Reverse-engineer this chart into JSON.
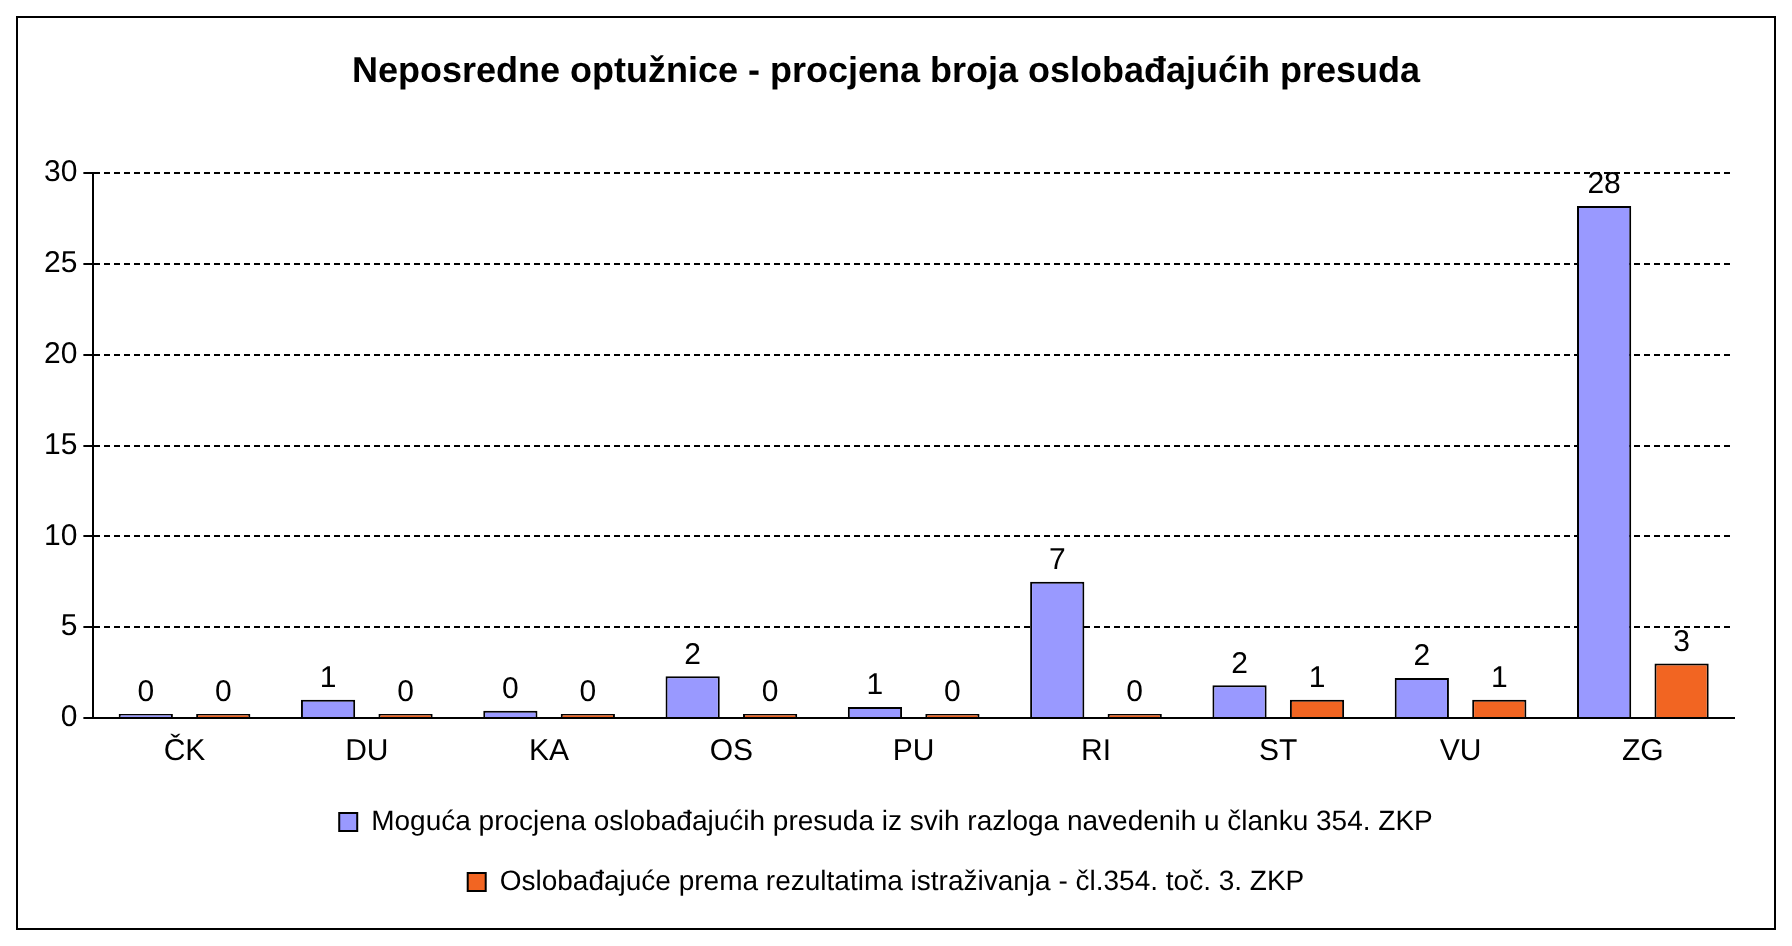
{
  "chart_data": {
    "type": "bar",
    "title": "Neposredne optužnice - procjena broja oslobađajućih presuda",
    "categories": [
      "ČK",
      "DU",
      "KA",
      "OS",
      "PU",
      "RI",
      "ST",
      "VU",
      "ZG"
    ],
    "series": [
      {
        "name": "Moguća procjena oslobađajućih presuda iz svih razloga navedenih u članku 354. ZKP",
        "color": "#9999ff",
        "values": [
          0.2,
          1.0,
          0.4,
          2.3,
          0.6,
          7.5,
          1.8,
          2.2,
          28.2
        ],
        "value_labels": [
          "0",
          "1",
          "0",
          "2",
          "1",
          "7",
          "2",
          "2",
          "28"
        ]
      },
      {
        "name": "Oslobađajuće prema rezultatima istraživanja - čl.354. toč. 3. ZKP",
        "color": "#f26522",
        "values": [
          0,
          0,
          0,
          0,
          0,
          0,
          1.0,
          1.0,
          3.0
        ],
        "value_labels": [
          "0",
          "0",
          "0",
          "0",
          "0",
          "0",
          "1",
          "1",
          "3"
        ]
      }
    ],
    "ylim": [
      0,
      30
    ],
    "yticks": [
      0,
      5,
      10,
      15,
      20,
      25,
      30
    ],
    "grid": "y",
    "legend": "bottom"
  }
}
